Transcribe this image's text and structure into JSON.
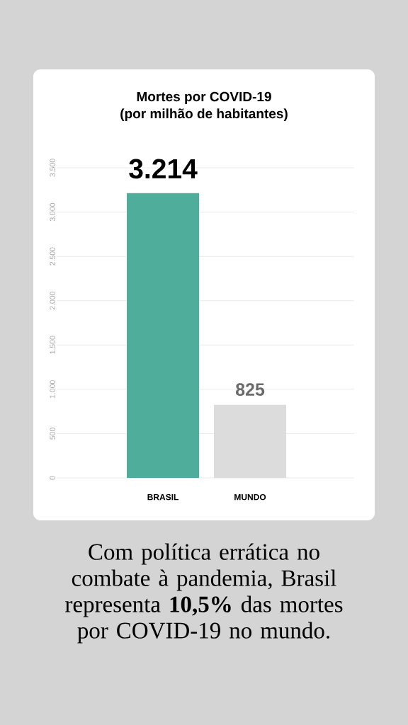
{
  "chart_data": {
    "type": "bar",
    "title": "Mortes por COVID-19",
    "subtitle": "(por milhão de habitantes)",
    "categories": [
      "BRASIL",
      "MUNDO"
    ],
    "values": [
      3214,
      825
    ],
    "colors": [
      "#4fae9b",
      "#dcdcdc"
    ],
    "value_labels": [
      "3.214",
      "825"
    ],
    "ylim": [
      0,
      3500
    ],
    "yticks": [
      0,
      500,
      {
        "value": 1000,
        "label": "1.000"
      },
      {
        "value": 1500,
        "label": "1.500"
      },
      {
        "value": 2000,
        "label": "2.000"
      },
      {
        "value": 2500,
        "label": "2.500"
      },
      {
        "value": 3000,
        "label": "3.000"
      },
      {
        "value": 3500,
        "label": "3.500"
      }
    ],
    "grid": "y",
    "annotations": [
      "Com política errática no combate à pandemia, Brasil representa **10,5%** das mortes por COVID-19 no mundo."
    ]
  }
}
